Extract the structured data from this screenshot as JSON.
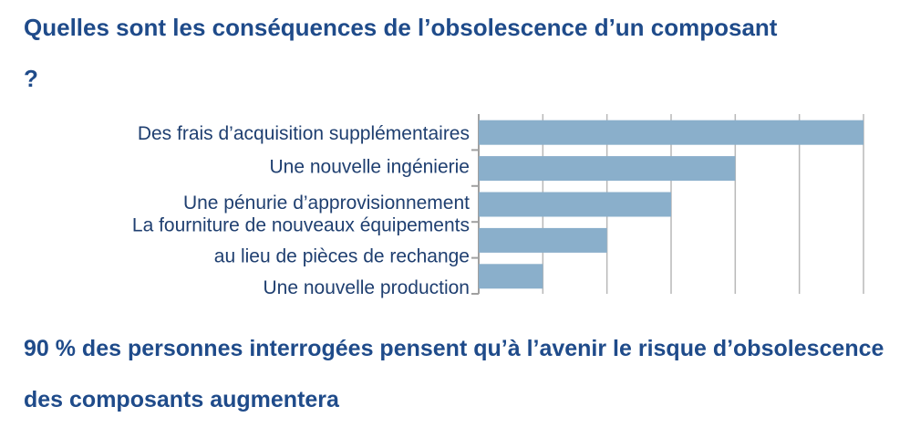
{
  "chart_data": {
    "type": "bar",
    "orientation": "horizontal",
    "title": "Quelles sont les conséquences de l’obsolescence d’un composant ?",
    "categories": [
      "Des frais d’acquisition supplémentaires",
      "Une nouvelle ingénierie",
      "Une pénurie d’approvisionnement",
      [
        "La fourniture de nouveaux équipements",
        "au lieu de pièces de rechange"
      ],
      "Une nouvelle production"
    ],
    "values": [
      6,
      4,
      3,
      2,
      1
    ],
    "color": "#8aafcb",
    "xlim": [
      0,
      6
    ],
    "xticks": [
      0,
      1,
      2,
      3,
      4,
      5,
      6
    ],
    "grid": true,
    "note": "90 % des personnes interrogées pensent qu’à l’avenir le risque d’obsolescence des composants augmentera"
  }
}
